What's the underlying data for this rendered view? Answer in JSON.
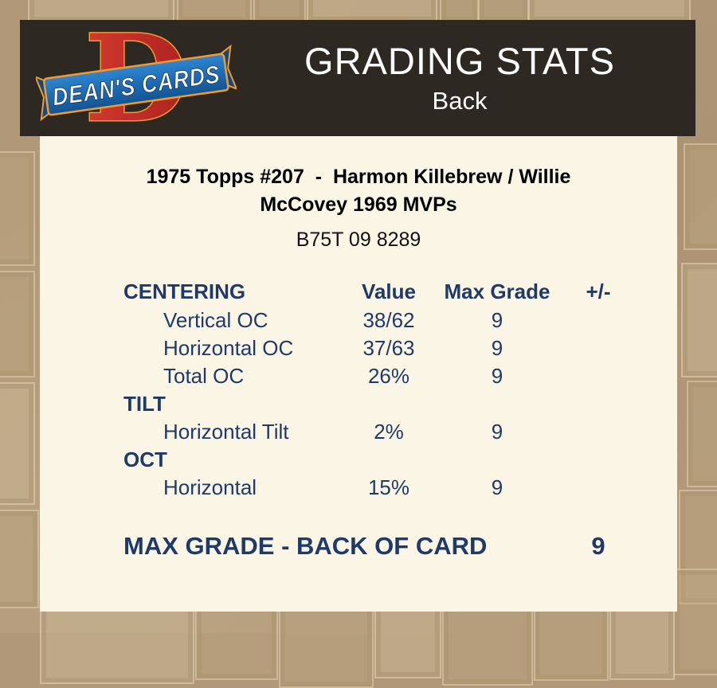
{
  "header": {
    "logo": {
      "letter": "D",
      "brand": "DEAN'S CARDS"
    },
    "title": "GRADING STATS",
    "subtitle": "Back"
  },
  "card": {
    "title": "1975 Topps #207  -  Harmon Killebrew / Willie McCovey 1969 MVPs",
    "code": "B75T 09 8289"
  },
  "table": {
    "columns": {
      "label": "CENTERING",
      "value": "Value",
      "max_grade": "Max Grade",
      "plus_minus": "+/-"
    },
    "sections": [
      {
        "name": "CENTERING",
        "rows": [
          {
            "label": "Vertical OC",
            "value": "38/62",
            "max_grade": "9"
          },
          {
            "label": "Horizontal OC",
            "value": "37/63",
            "max_grade": "9"
          },
          {
            "label": "Total OC",
            "value": "26%",
            "max_grade": "9"
          }
        ]
      },
      {
        "name": "TILT",
        "rows": [
          {
            "label": "Horizontal Tilt",
            "value": "2%",
            "max_grade": "9"
          }
        ]
      },
      {
        "name": "OCT",
        "rows": [
          {
            "label": "Horizontal",
            "value": "15%",
            "max_grade": "9"
          }
        ]
      }
    ]
  },
  "summary": {
    "label": "MAX GRADE - BACK OF CARD",
    "value": "9"
  },
  "colors": {
    "accent_navy": "#1e3a6b",
    "panel_cream": "#fbf5e6",
    "background_tan": "#b19878",
    "header_dark": "#2d2822",
    "logo_red": "#c5302c",
    "logo_orange": "#f09b2f",
    "logo_blue": "#1d6cb5"
  }
}
